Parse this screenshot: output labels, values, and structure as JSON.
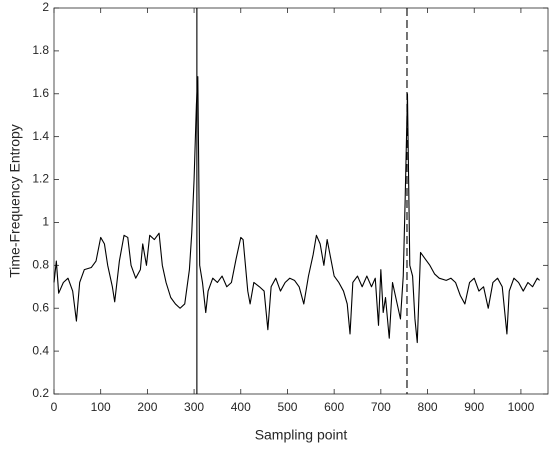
{
  "chart_data": {
    "type": "line",
    "xlabel": "Sampling point",
    "ylabel": "Time-Frequency Entropy",
    "x": [
      0,
      5,
      10,
      20,
      30,
      40,
      48,
      55,
      65,
      80,
      90,
      100,
      108,
      115,
      125,
      130,
      140,
      150,
      158,
      165,
      175,
      185,
      190,
      198,
      205,
      215,
      225,
      232,
      240,
      250,
      260,
      270,
      280,
      290,
      295,
      300,
      305,
      308,
      312,
      318,
      325,
      330,
      340,
      350,
      360,
      370,
      380,
      390,
      400,
      405,
      410,
      415,
      420,
      428,
      440,
      450,
      458,
      465,
      475,
      485,
      495,
      505,
      515,
      525,
      535,
      545,
      555,
      562,
      570,
      578,
      585,
      592,
      600,
      610,
      620,
      628,
      634,
      640,
      650,
      660,
      670,
      680,
      688,
      695,
      700,
      705,
      710,
      718,
      725,
      735,
      742,
      748,
      752,
      757,
      762,
      768,
      773,
      778,
      785,
      795,
      805,
      815,
      825,
      840,
      850,
      860,
      870,
      880,
      890,
      900,
      910,
      920,
      930,
      940,
      950,
      960,
      970,
      975,
      985,
      995,
      1005,
      1015,
      1025,
      1035,
      1040
    ],
    "series": [
      {
        "name": "entropy",
        "color": "#000000",
        "values": [
          0.72,
          0.82,
          0.67,
          0.72,
          0.74,
          0.68,
          0.54,
          0.72,
          0.78,
          0.79,
          0.82,
          0.93,
          0.9,
          0.8,
          0.7,
          0.63,
          0.82,
          0.94,
          0.93,
          0.8,
          0.74,
          0.78,
          0.9,
          0.8,
          0.94,
          0.92,
          0.95,
          0.8,
          0.72,
          0.65,
          0.62,
          0.6,
          0.62,
          0.78,
          0.95,
          1.2,
          1.55,
          1.68,
          0.8,
          0.72,
          0.58,
          0.68,
          0.74,
          0.72,
          0.75,
          0.7,
          0.72,
          0.83,
          0.93,
          0.92,
          0.8,
          0.68,
          0.62,
          0.72,
          0.7,
          0.68,
          0.5,
          0.7,
          0.74,
          0.68,
          0.72,
          0.74,
          0.73,
          0.7,
          0.62,
          0.75,
          0.85,
          0.94,
          0.9,
          0.8,
          0.92,
          0.84,
          0.75,
          0.72,
          0.68,
          0.62,
          0.48,
          0.72,
          0.75,
          0.7,
          0.75,
          0.7,
          0.74,
          0.52,
          0.78,
          0.58,
          0.65,
          0.46,
          0.72,
          0.62,
          0.55,
          0.75,
          1.1,
          1.6,
          0.8,
          0.75,
          0.55,
          0.44,
          0.86,
          0.83,
          0.8,
          0.76,
          0.74,
          0.73,
          0.74,
          0.72,
          0.66,
          0.62,
          0.72,
          0.74,
          0.68,
          0.7,
          0.6,
          0.72,
          0.74,
          0.7,
          0.48,
          0.68,
          0.74,
          0.72,
          0.68,
          0.72,
          0.7,
          0.74,
          0.73
        ]
      }
    ],
    "vlines": [
      {
        "x": 306,
        "style": "solid"
      },
      {
        "x": 756,
        "style": "dashed"
      }
    ],
    "xlim": [
      0,
      1058
    ],
    "ylim": [
      0.2,
      2
    ],
    "xticks": [
      0,
      100,
      200,
      300,
      400,
      500,
      600,
      700,
      800,
      900,
      1000
    ],
    "yticks": [
      0.2,
      0.4,
      0.6,
      0.8,
      1,
      1.2,
      1.4,
      1.6,
      1.8,
      2
    ]
  }
}
